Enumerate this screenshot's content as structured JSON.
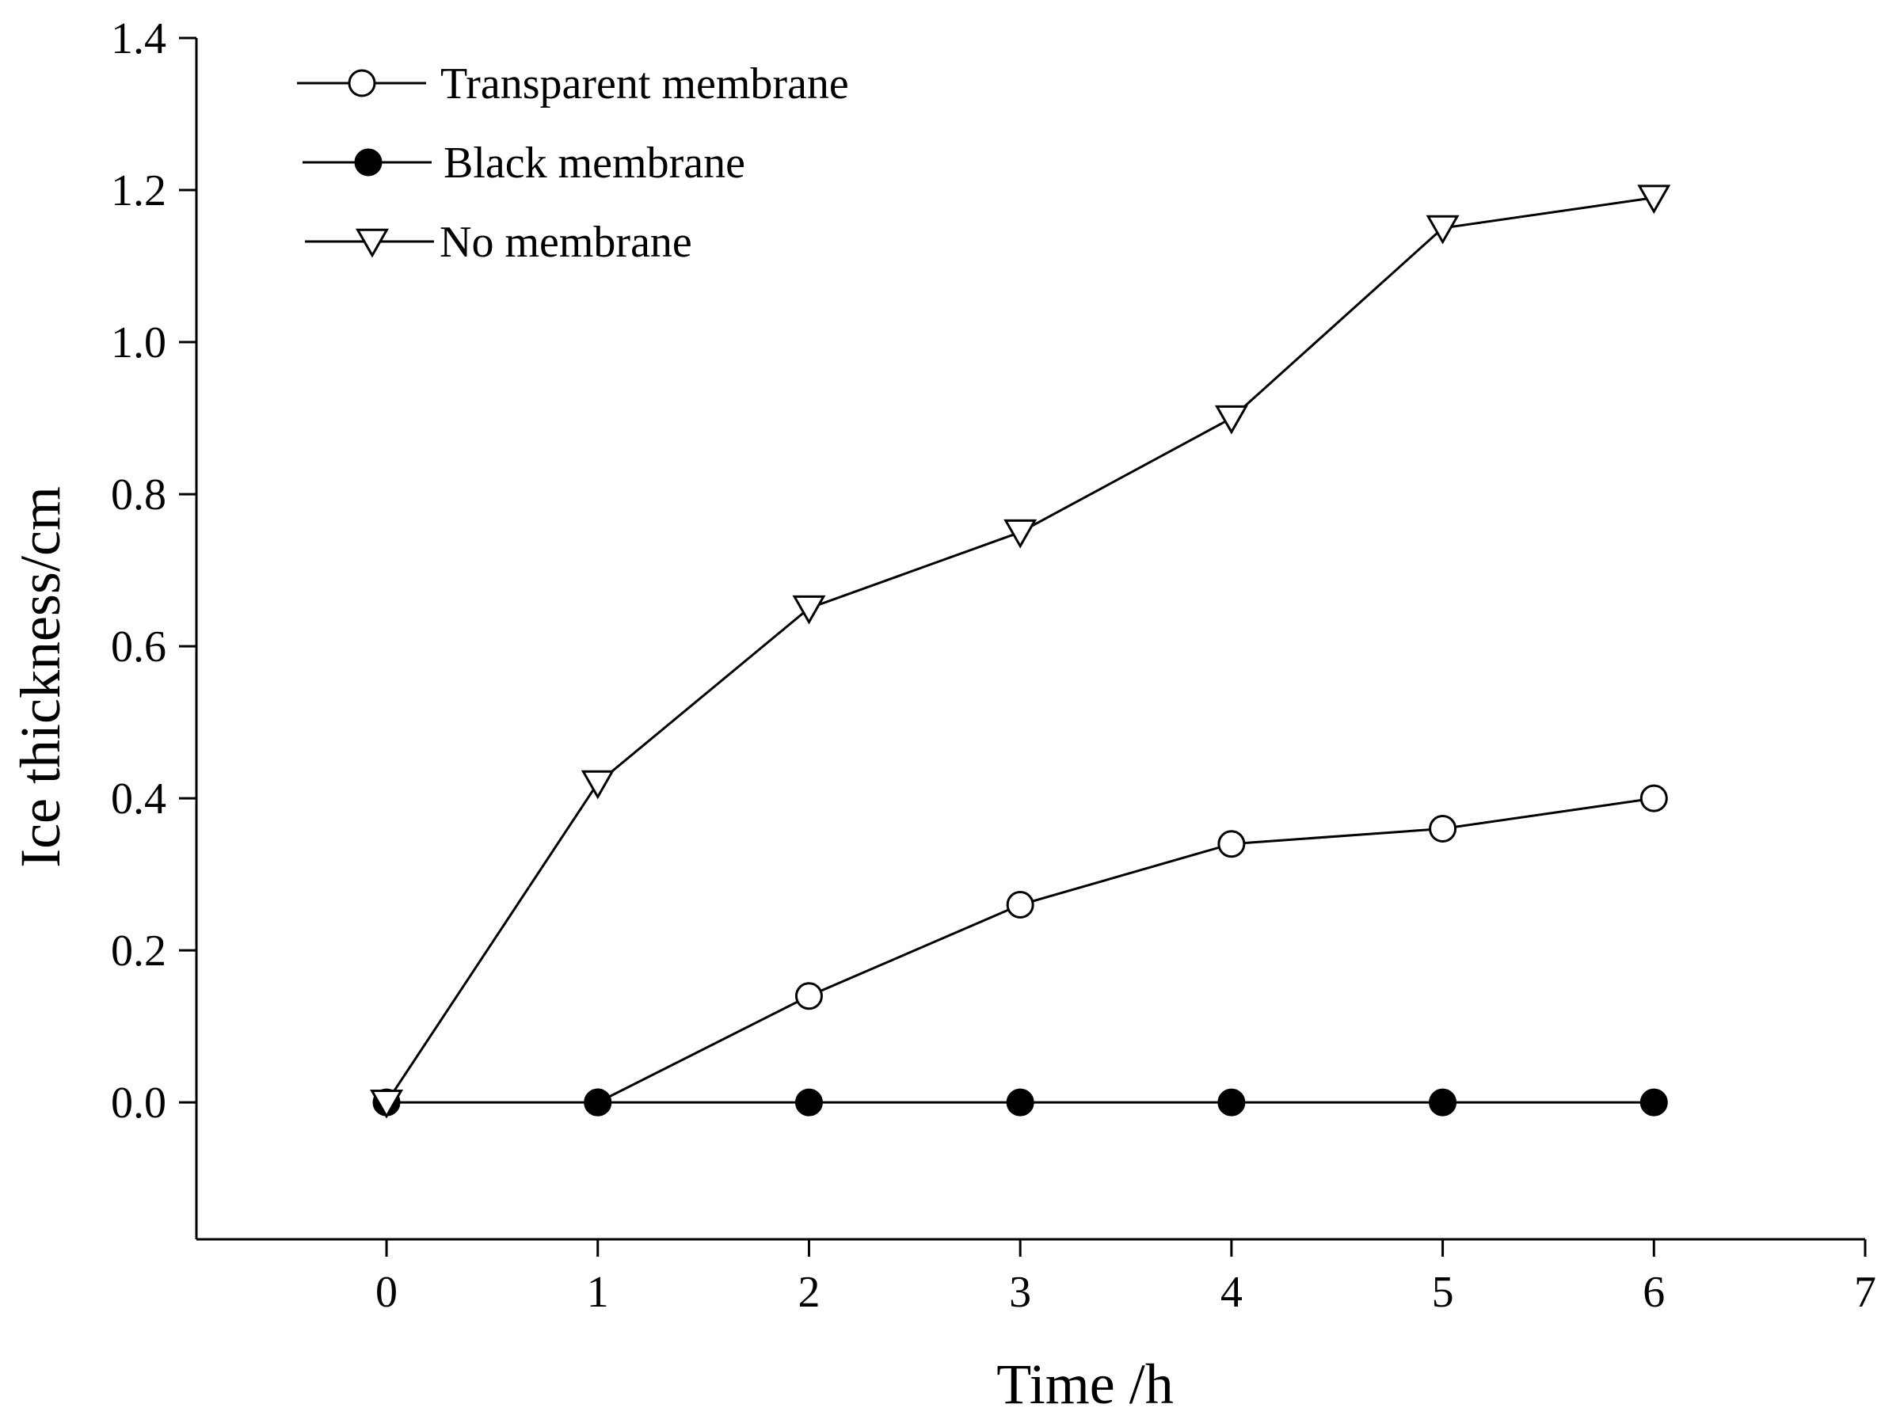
{
  "chart_data": {
    "type": "line",
    "title": "",
    "xlabel": "Time /h",
    "ylabel": "Ice thickness/cm",
    "xlim": [
      -0.9,
      7
    ],
    "ylim": [
      -0.18,
      1.4
    ],
    "x_ticks": [
      "0",
      "1",
      "2",
      "3",
      "4",
      "5",
      "6",
      "7"
    ],
    "y_ticks": [
      "0.0",
      "0.2",
      "0.4",
      "0.6",
      "0.8",
      "1.0",
      "1.2",
      "1.4"
    ],
    "grid": false,
    "legend_position": "top-left",
    "series": [
      {
        "name": "Transparent membrane",
        "marker": "open-circle",
        "x": [
          1,
          2,
          3,
          4,
          5,
          6
        ],
        "y": [
          0.0,
          0.14,
          0.26,
          0.34,
          0.36,
          0.4
        ]
      },
      {
        "name": "Black membrane",
        "marker": "filled-circle",
        "x": [
          0,
          1,
          2,
          3,
          4,
          5,
          6
        ],
        "y": [
          0.0,
          0.0,
          0.0,
          0.0,
          0.0,
          0.0,
          0.0
        ]
      },
      {
        "name": "No membrane",
        "marker": "open-triangle-down",
        "x": [
          0,
          1,
          2,
          3,
          4,
          5,
          6
        ],
        "y": [
          0.0,
          0.42,
          0.65,
          0.75,
          0.9,
          1.15,
          1.19
        ]
      }
    ],
    "colors": {
      "line": "#000000",
      "open_marker_fill": "#ffffff",
      "filled_marker_fill": "#000000"
    }
  }
}
